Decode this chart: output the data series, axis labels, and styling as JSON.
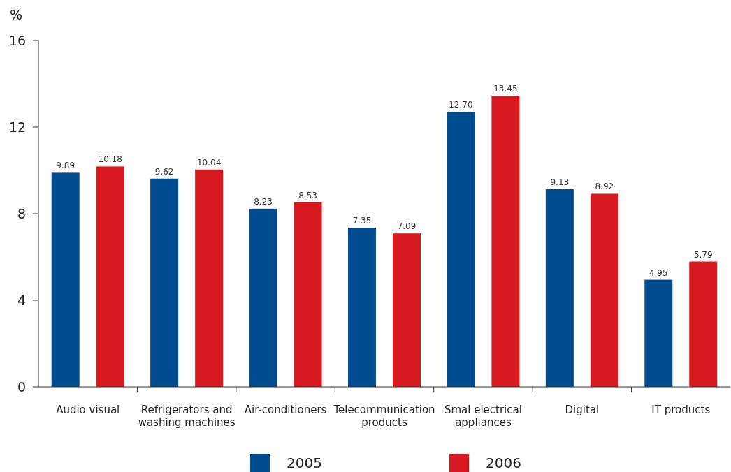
{
  "chart_data": {
    "type": "bar",
    "ylabel": "%",
    "categories": [
      "Audio visual",
      "Refrigerators and washing machines",
      "Air-conditioners",
      "Telecommunication products",
      "Smal electrical appliances",
      "Digital",
      "IT products"
    ],
    "series": [
      {
        "name": "2005",
        "color": "#004b8d",
        "values": [
          9.89,
          9.62,
          8.23,
          7.35,
          12.7,
          9.13,
          4.95
        ],
        "value_labels": [
          "9.89",
          "9.62",
          "8.23",
          "7.35",
          "12.70",
          "9.13",
          "4.95"
        ]
      },
      {
        "name": "2006",
        "color": "#d71920",
        "values": [
          10.18,
          10.04,
          8.53,
          7.09,
          13.45,
          8.92,
          5.79
        ],
        "value_labels": [
          "10.18",
          "10.04",
          "8.53",
          "7.09",
          "13.45",
          "8.92",
          "5.79"
        ]
      }
    ],
    "ylim": [
      0,
      16
    ],
    "yticks": [
      0,
      4,
      8,
      12,
      16
    ],
    "grid": false,
    "legend": "bottom"
  }
}
